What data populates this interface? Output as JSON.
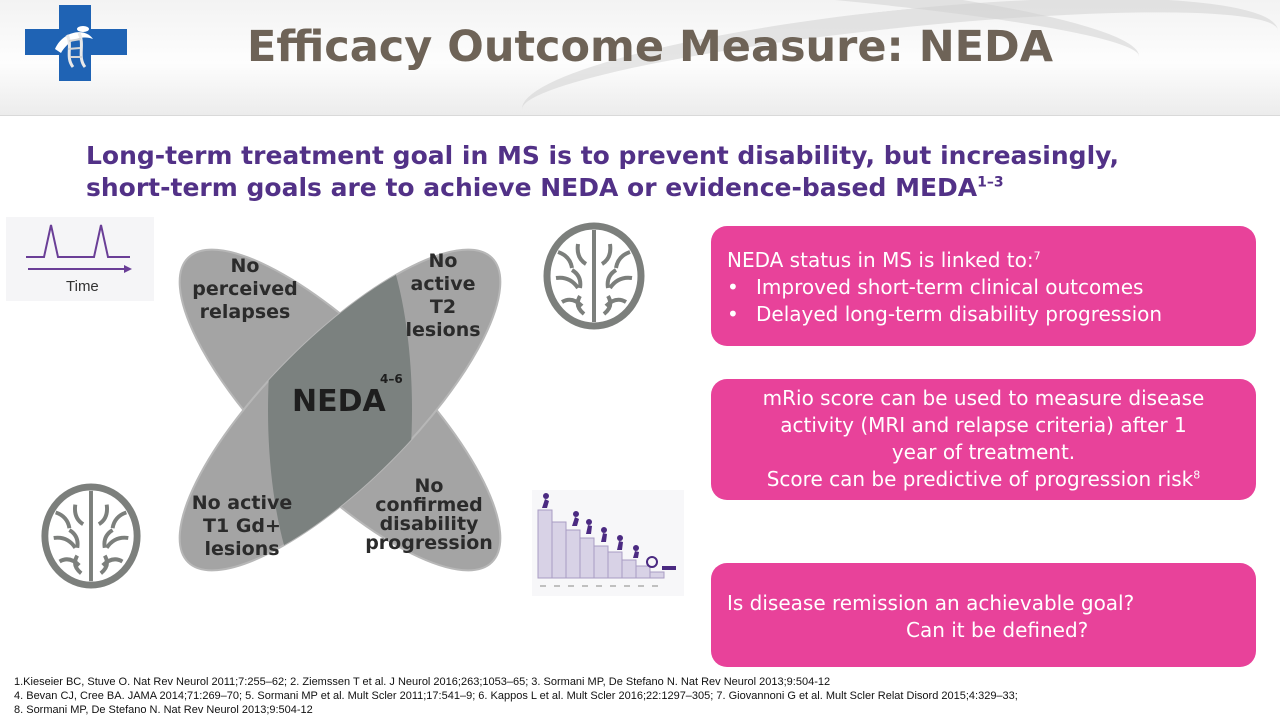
{
  "slide": {
    "title": "Efficacy Outcome Measure: NEDA",
    "subtitle_line1": "Long-term treatment goal in MS is to prevent disability, but increasingly,",
    "subtitle_line2": "short-term goals are to achieve NEDA or evidence-based MEDA",
    "subtitle_ref": "1–3"
  },
  "venn": {
    "top_left": [
      "No",
      "perceived",
      "relapses"
    ],
    "top_right": [
      "No",
      "active",
      "T2",
      "lesions"
    ],
    "bottom_left": [
      "No active",
      "T1 Gd+",
      "lesions"
    ],
    "bottom_right": [
      "No",
      "confirmed",
      "disability",
      "progression"
    ],
    "center": "NEDA",
    "center_ref": "4–6",
    "colors": {
      "petal": "#a4a4a4",
      "center": "#7b817f",
      "petal_edge": "#b7b7b7"
    }
  },
  "icons": {
    "time_label": "Time",
    "time_icon": "relapse-timeline-icon",
    "brain_icon": "brain-icon",
    "stairs_icon": "disability-staircase-icon"
  },
  "boxes": {
    "linked": {
      "heading": "NEDA status in MS is linked to:",
      "heading_ref": "7",
      "bullets": [
        "Improved short-term clinical outcomes",
        "Delayed long-term disability progression"
      ]
    },
    "mrio": {
      "line1": "mRio score can be used to measure disease",
      "line2": "activity (MRI and relapse criteria) after 1",
      "line3": "year of treatment.",
      "line4": "Score can be predictive of progression risk",
      "line4_ref": "8"
    },
    "question": {
      "line1": "Is disease remission an achievable goal?",
      "line2": "Can it be defined?"
    },
    "color": "#e8429a"
  },
  "references": [
    "1.Kieseier BC, Stuve O. Nat Rev Neurol 2011;7:255–62; 2. Ziemssen T et al. J Neurol 2016;263;1053–65; 3. Sormani MP, De Stefano N. Nat Rev Neurol 2013;9:504-12",
    "4. Bevan CJ, Cree BA. JAMA 2014;71:269–70; 5. Sormani MP et al. Mult Scler 2011;17:541–9; 6. Kappos L et al. Mult Scler 2016;22:1297–305; 7. Giovannoni G et al. Mult Scler Relat Disord 2015;4:329–33;",
    "8. Sormani MP, De Stefano N. Nat Rev Neurol 2013;9:504-12"
  ],
  "theme": {
    "title_color": "#6e6357",
    "subtitle_color": "#523187",
    "logo_blue": "#1f63b4"
  }
}
